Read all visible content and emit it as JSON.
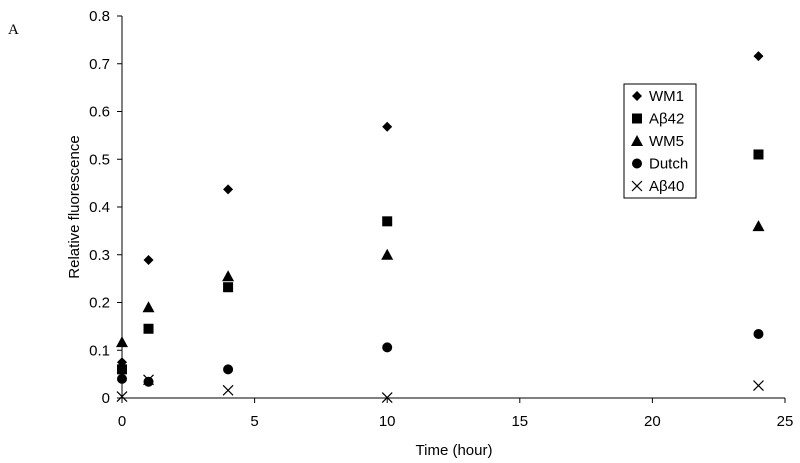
{
  "panel_label": "A",
  "chart_data": {
    "type": "scatter",
    "title": "",
    "xlabel": "Time (hour)",
    "ylabel": "Relative fluorescence",
    "xlim": [
      0,
      25
    ],
    "ylim": [
      0,
      0.8
    ],
    "xticks": [
      0,
      5,
      10,
      15,
      20,
      25
    ],
    "yticks": [
      0,
      0.1,
      0.2,
      0.3,
      0.4,
      0.5,
      0.6,
      0.7,
      0.8
    ],
    "grid": false,
    "legend_position": "right",
    "series": [
      {
        "name": "WM1",
        "marker": "diamond",
        "x": [
          0,
          1,
          4,
          10,
          24
        ],
        "y": [
          0.075,
          0.289,
          0.437,
          0.568,
          0.716
        ]
      },
      {
        "name": "Aβ42",
        "marker": "square",
        "x": [
          0,
          1,
          4,
          10,
          24
        ],
        "y": [
          0.06,
          0.145,
          0.232,
          0.37,
          0.51
        ]
      },
      {
        "name": "WM5",
        "marker": "triangle",
        "x": [
          0,
          1,
          4,
          10,
          24
        ],
        "y": [
          0.117,
          0.19,
          0.255,
          0.3,
          0.36
        ]
      },
      {
        "name": "Dutch",
        "marker": "circle",
        "x": [
          0,
          1,
          4,
          10,
          24
        ],
        "y": [
          0.04,
          0.034,
          0.06,
          0.106,
          0.134
        ]
      },
      {
        "name": "Aβ40",
        "marker": "x",
        "x": [
          0,
          1,
          4,
          10,
          24
        ],
        "y": [
          0.003,
          0.038,
          0.016,
          0.001,
          0.026
        ]
      }
    ]
  }
}
